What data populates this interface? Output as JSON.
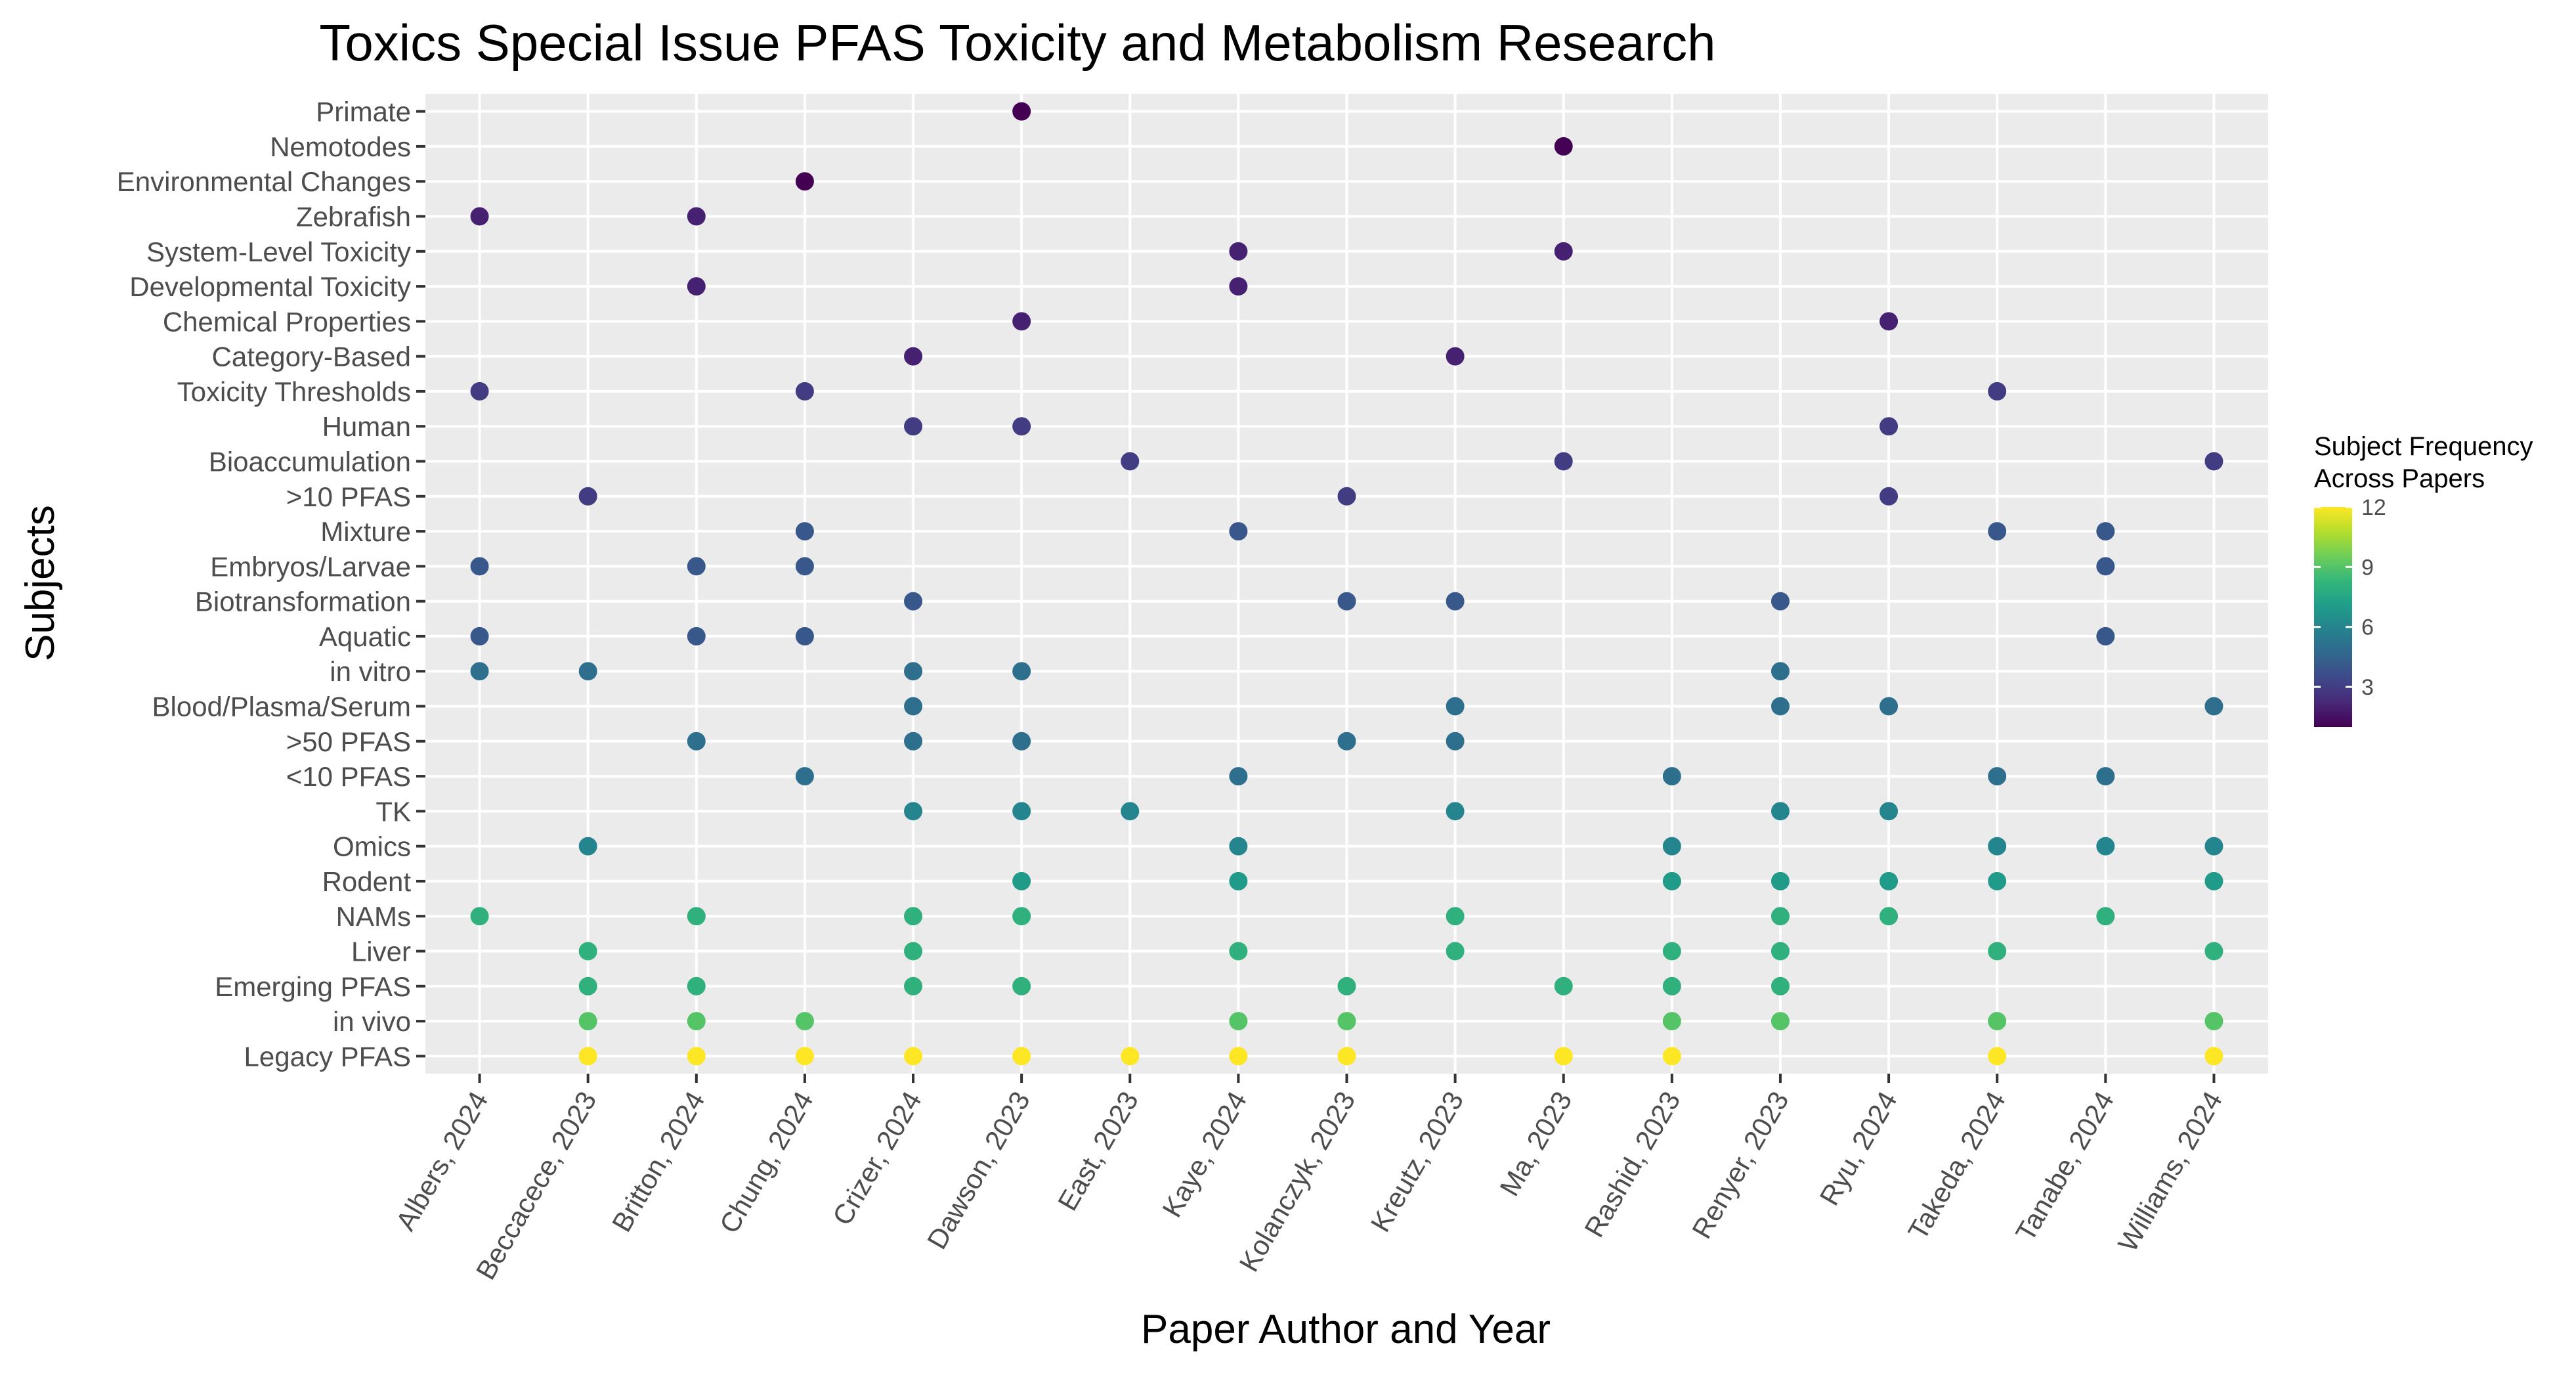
{
  "chart_data": {
    "type": "scatter",
    "title": "Toxics Special Issue PFAS Toxicity and Metabolism Research",
    "xlabel": "Paper Author and Year",
    "ylabel": "Subjects",
    "papers": [
      "Albers, 2024",
      "Beccacece, 2023",
      "Britton, 2024",
      "Chung, 2024",
      "Crizer, 2024",
      "Dawson, 2023",
      "East, 2023",
      "Kaye, 2024",
      "Kolanczyk, 2023",
      "Kreutz, 2023",
      "Ma, 2023",
      "Rashid, 2023",
      "Renyer, 2023",
      "Ryu, 2024",
      "Takeda, 2024",
      "Tanabe, 2024",
      "Williams, 2024"
    ],
    "subjects": [
      "Legacy PFAS",
      "in vivo",
      "Emerging PFAS",
      "Liver",
      "NAMs",
      "Rodent",
      "Omics",
      "TK",
      "<10 PFAS",
      ">50 PFAS",
      "Blood/Plasma/Serum",
      "in vitro",
      "Aquatic",
      "Biotransformation",
      "Embryos/Larvae",
      "Mixture",
      ">10 PFAS",
      "Bioaccumulation",
      "Human",
      "Toxicity Thresholds",
      "Category-Based",
      "Chemical Properties",
      "Developmental Toxicity",
      "System-Level Toxicity",
      "Zebrafish",
      "Environmental Changes",
      "Nemotodes",
      "Primate"
    ],
    "frequency": {
      "Legacy PFAS": 12,
      "in vivo": 9,
      "Emerging PFAS": 8,
      "Liver": 8,
      "NAMs": 8,
      "Rodent": 7,
      "Omics": 6,
      "TK": 6,
      "<10 PFAS": 5,
      ">50 PFAS": 5,
      "Blood/Plasma/Serum": 5,
      "in vitro": 5,
      "Aquatic": 4,
      "Biotransformation": 4,
      "Embryos/Larvae": 4,
      "Mixture": 4,
      ">10 PFAS": 3,
      "Bioaccumulation": 3,
      "Human": 3,
      "Toxicity Thresholds": 3,
      "Category-Based": 2,
      "Chemical Properties": 2,
      "Developmental Toxicity": 2,
      "System-Level Toxicity": 2,
      "Zebrafish": 2,
      "Environmental Changes": 1,
      "Nemotodes": 1,
      "Primate": 1
    },
    "points": [
      {
        "paper": "Albers, 2024",
        "subject": "Zebrafish"
      },
      {
        "paper": "Albers, 2024",
        "subject": "Toxicity Thresholds"
      },
      {
        "paper": "Albers, 2024",
        "subject": "Embryos/Larvae"
      },
      {
        "paper": "Albers, 2024",
        "subject": "Aquatic"
      },
      {
        "paper": "Albers, 2024",
        "subject": "in vitro"
      },
      {
        "paper": "Albers, 2024",
        "subject": "NAMs"
      },
      {
        "paper": "Beccacece, 2023",
        "subject": ">10 PFAS"
      },
      {
        "paper": "Beccacece, 2023",
        "subject": "in vitro"
      },
      {
        "paper": "Beccacece, 2023",
        "subject": "Omics"
      },
      {
        "paper": "Beccacece, 2023",
        "subject": "Liver"
      },
      {
        "paper": "Beccacece, 2023",
        "subject": "Emerging PFAS"
      },
      {
        "paper": "Beccacece, 2023",
        "subject": "in vivo"
      },
      {
        "paper": "Beccacece, 2023",
        "subject": "Legacy PFAS"
      },
      {
        "paper": "Britton, 2024",
        "subject": "Zebrafish"
      },
      {
        "paper": "Britton, 2024",
        "subject": "Developmental Toxicity"
      },
      {
        "paper": "Britton, 2024",
        "subject": "Embryos/Larvae"
      },
      {
        "paper": "Britton, 2024",
        "subject": "Aquatic"
      },
      {
        "paper": "Britton, 2024",
        "subject": ">50 PFAS"
      },
      {
        "paper": "Britton, 2024",
        "subject": "NAMs"
      },
      {
        "paper": "Britton, 2024",
        "subject": "Emerging PFAS"
      },
      {
        "paper": "Britton, 2024",
        "subject": "in vivo"
      },
      {
        "paper": "Britton, 2024",
        "subject": "Legacy PFAS"
      },
      {
        "paper": "Chung, 2024",
        "subject": "Environmental Changes"
      },
      {
        "paper": "Chung, 2024",
        "subject": "Toxicity Thresholds"
      },
      {
        "paper": "Chung, 2024",
        "subject": "Mixture"
      },
      {
        "paper": "Chung, 2024",
        "subject": "Embryos/Larvae"
      },
      {
        "paper": "Chung, 2024",
        "subject": "Aquatic"
      },
      {
        "paper": "Chung, 2024",
        "subject": "<10 PFAS"
      },
      {
        "paper": "Chung, 2024",
        "subject": "in vivo"
      },
      {
        "paper": "Chung, 2024",
        "subject": "Legacy PFAS"
      },
      {
        "paper": "Crizer, 2024",
        "subject": "Category-Based"
      },
      {
        "paper": "Crizer, 2024",
        "subject": "Human"
      },
      {
        "paper": "Crizer, 2024",
        "subject": "Biotransformation"
      },
      {
        "paper": "Crizer, 2024",
        "subject": "in vitro"
      },
      {
        "paper": "Crizer, 2024",
        "subject": "Blood/Plasma/Serum"
      },
      {
        "paper": "Crizer, 2024",
        "subject": ">50 PFAS"
      },
      {
        "paper": "Crizer, 2024",
        "subject": "TK"
      },
      {
        "paper": "Crizer, 2024",
        "subject": "NAMs"
      },
      {
        "paper": "Crizer, 2024",
        "subject": "Liver"
      },
      {
        "paper": "Crizer, 2024",
        "subject": "Emerging PFAS"
      },
      {
        "paper": "Crizer, 2024",
        "subject": "Legacy PFAS"
      },
      {
        "paper": "Dawson, 2023",
        "subject": "Primate"
      },
      {
        "paper": "Dawson, 2023",
        "subject": "Chemical Properties"
      },
      {
        "paper": "Dawson, 2023",
        "subject": "Human"
      },
      {
        "paper": "Dawson, 2023",
        "subject": "in vitro"
      },
      {
        "paper": "Dawson, 2023",
        "subject": ">50 PFAS"
      },
      {
        "paper": "Dawson, 2023",
        "subject": "TK"
      },
      {
        "paper": "Dawson, 2023",
        "subject": "Rodent"
      },
      {
        "paper": "Dawson, 2023",
        "subject": "NAMs"
      },
      {
        "paper": "Dawson, 2023",
        "subject": "Emerging PFAS"
      },
      {
        "paper": "Dawson, 2023",
        "subject": "Legacy PFAS"
      },
      {
        "paper": "East, 2023",
        "subject": "Bioaccumulation"
      },
      {
        "paper": "East, 2023",
        "subject": "TK"
      },
      {
        "paper": "East, 2023",
        "subject": "Legacy PFAS"
      },
      {
        "paper": "Kaye, 2024",
        "subject": "System-Level Toxicity"
      },
      {
        "paper": "Kaye, 2024",
        "subject": "Developmental Toxicity"
      },
      {
        "paper": "Kaye, 2024",
        "subject": "Mixture"
      },
      {
        "paper": "Kaye, 2024",
        "subject": "<10 PFAS"
      },
      {
        "paper": "Kaye, 2024",
        "subject": "Omics"
      },
      {
        "paper": "Kaye, 2024",
        "subject": "Rodent"
      },
      {
        "paper": "Kaye, 2024",
        "subject": "Liver"
      },
      {
        "paper": "Kaye, 2024",
        "subject": "in vivo"
      },
      {
        "paper": "Kaye, 2024",
        "subject": "Legacy PFAS"
      },
      {
        "paper": "Kolanczyk, 2023",
        "subject": ">10 PFAS"
      },
      {
        "paper": "Kolanczyk, 2023",
        "subject": "Biotransformation"
      },
      {
        "paper": "Kolanczyk, 2023",
        "subject": ">50 PFAS"
      },
      {
        "paper": "Kolanczyk, 2023",
        "subject": "Emerging PFAS"
      },
      {
        "paper": "Kolanczyk, 2023",
        "subject": "in vivo"
      },
      {
        "paper": "Kolanczyk, 2023",
        "subject": "Legacy PFAS"
      },
      {
        "paper": "Kreutz, 2023",
        "subject": "Category-Based"
      },
      {
        "paper": "Kreutz, 2023",
        "subject": "Biotransformation"
      },
      {
        "paper": "Kreutz, 2023",
        "subject": "Blood/Plasma/Serum"
      },
      {
        "paper": "Kreutz, 2023",
        "subject": ">50 PFAS"
      },
      {
        "paper": "Kreutz, 2023",
        "subject": "TK"
      },
      {
        "paper": "Kreutz, 2023",
        "subject": "NAMs"
      },
      {
        "paper": "Kreutz, 2023",
        "subject": "Liver"
      },
      {
        "paper": "Ma, 2023",
        "subject": "Nemotodes"
      },
      {
        "paper": "Ma, 2023",
        "subject": "System-Level Toxicity"
      },
      {
        "paper": "Ma, 2023",
        "subject": "Bioaccumulation"
      },
      {
        "paper": "Ma, 2023",
        "subject": "Emerging PFAS"
      },
      {
        "paper": "Ma, 2023",
        "subject": "Legacy PFAS"
      },
      {
        "paper": "Rashid, 2023",
        "subject": "<10 PFAS"
      },
      {
        "paper": "Rashid, 2023",
        "subject": "Omics"
      },
      {
        "paper": "Rashid, 2023",
        "subject": "Rodent"
      },
      {
        "paper": "Rashid, 2023",
        "subject": "Liver"
      },
      {
        "paper": "Rashid, 2023",
        "subject": "Emerging PFAS"
      },
      {
        "paper": "Rashid, 2023",
        "subject": "in vivo"
      },
      {
        "paper": "Rashid, 2023",
        "subject": "Legacy PFAS"
      },
      {
        "paper": "Renyer, 2023",
        "subject": "Biotransformation"
      },
      {
        "paper": "Renyer, 2023",
        "subject": "in vitro"
      },
      {
        "paper": "Renyer, 2023",
        "subject": "Blood/Plasma/Serum"
      },
      {
        "paper": "Renyer, 2023",
        "subject": "TK"
      },
      {
        "paper": "Renyer, 2023",
        "subject": "Rodent"
      },
      {
        "paper": "Renyer, 2023",
        "subject": "NAMs"
      },
      {
        "paper": "Renyer, 2023",
        "subject": "Liver"
      },
      {
        "paper": "Renyer, 2023",
        "subject": "Emerging PFAS"
      },
      {
        "paper": "Renyer, 2023",
        "subject": "in vivo"
      },
      {
        "paper": "Ryu, 2024",
        "subject": "Chemical Properties"
      },
      {
        "paper": "Ryu, 2024",
        "subject": "Human"
      },
      {
        "paper": "Ryu, 2024",
        "subject": ">10 PFAS"
      },
      {
        "paper": "Ryu, 2024",
        "subject": "Blood/Plasma/Serum"
      },
      {
        "paper": "Ryu, 2024",
        "subject": "TK"
      },
      {
        "paper": "Ryu, 2024",
        "subject": "Rodent"
      },
      {
        "paper": "Ryu, 2024",
        "subject": "NAMs"
      },
      {
        "paper": "Takeda, 2024",
        "subject": "Toxicity Thresholds"
      },
      {
        "paper": "Takeda, 2024",
        "subject": "Mixture"
      },
      {
        "paper": "Takeda, 2024",
        "subject": "<10 PFAS"
      },
      {
        "paper": "Takeda, 2024",
        "subject": "Omics"
      },
      {
        "paper": "Takeda, 2024",
        "subject": "Rodent"
      },
      {
        "paper": "Takeda, 2024",
        "subject": "Liver"
      },
      {
        "paper": "Takeda, 2024",
        "subject": "in vivo"
      },
      {
        "paper": "Takeda, 2024",
        "subject": "Legacy PFAS"
      },
      {
        "paper": "Tanabe, 2024",
        "subject": "Mixture"
      },
      {
        "paper": "Tanabe, 2024",
        "subject": "Embryos/Larvae"
      },
      {
        "paper": "Tanabe, 2024",
        "subject": "Aquatic"
      },
      {
        "paper": "Tanabe, 2024",
        "subject": "<10 PFAS"
      },
      {
        "paper": "Tanabe, 2024",
        "subject": "Omics"
      },
      {
        "paper": "Tanabe, 2024",
        "subject": "NAMs"
      },
      {
        "paper": "Williams, 2024",
        "subject": "Bioaccumulation"
      },
      {
        "paper": "Williams, 2024",
        "subject": "Blood/Plasma/Serum"
      },
      {
        "paper": "Williams, 2024",
        "subject": "Omics"
      },
      {
        "paper": "Williams, 2024",
        "subject": "Rodent"
      },
      {
        "paper": "Williams, 2024",
        "subject": "Liver"
      },
      {
        "paper": "Williams, 2024",
        "subject": "in vivo"
      },
      {
        "paper": "Williams, 2024",
        "subject": "Legacy PFAS"
      }
    ],
    "legend": {
      "title_line1": "Subject Frequency",
      "title_line2": "Across Papers",
      "ticks": [
        12,
        9,
        6,
        3
      ],
      "range": [
        1,
        12
      ],
      "colormap": "viridis",
      "placement": "right"
    }
  },
  "colors": {
    "panel_background": "#ebebeb",
    "grid_major": "#ffffff",
    "grid_minor": "#f4f4f4",
    "axis_text": "#4d4d4d",
    "title_text": "#000000",
    "viridis_stops": [
      "#440154",
      "#482878",
      "#3e4989",
      "#31688e",
      "#26828e",
      "#1f9e89",
      "#35b779",
      "#6ece58",
      "#b5de2b",
      "#fde725"
    ]
  }
}
